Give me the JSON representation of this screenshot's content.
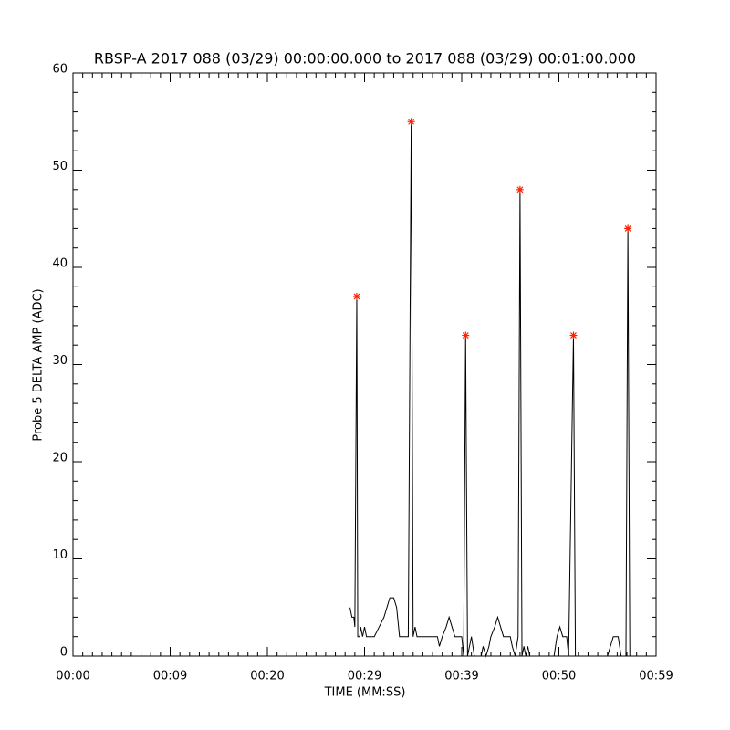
{
  "chart_data": {
    "type": "line",
    "title": "RBSP-A 2017 088 (03/29) 00:00:00.000 to 2017 088 (03/29) 00:01:00.000",
    "xlabel": "TIME (MM:SS)",
    "ylabel": "Probe 5 DELTA AMP (ADC)",
    "xlim": [
      0,
      60
    ],
    "ylim": [
      0,
      60
    ],
    "xticks": [
      {
        "value": 0,
        "label": "00:00"
      },
      {
        "value": 10,
        "label": "00:09"
      },
      {
        "value": 20,
        "label": "00:20"
      },
      {
        "value": 30,
        "label": "00:29"
      },
      {
        "value": 40,
        "label": "00:39"
      },
      {
        "value": 50,
        "label": "00:50"
      },
      {
        "value": 60,
        "label": "00:59"
      }
    ],
    "yticks": [
      0,
      10,
      20,
      30,
      40,
      50,
      60
    ],
    "xminor": 10,
    "yminor": 5,
    "series": [
      {
        "mode": "lines",
        "color": "#000000",
        "x": [
          28.5,
          28.7,
          28.9,
          29.0,
          29.2,
          29.3,
          29.5,
          29.6,
          29.8,
          30.0,
          30.2,
          31.0,
          31.5,
          32.0,
          32.3,
          32.6,
          33.0,
          33.3,
          33.6,
          34.0,
          34.5,
          34.8,
          35.0,
          35.2,
          35.4,
          36.5,
          37.5,
          37.7,
          38.0,
          38.4,
          38.7,
          39.0,
          39.3,
          40.0,
          40.2,
          40.4,
          40.6,
          41.0,
          41.3,
          42.0,
          42.2,
          42.5,
          42.8,
          43.0,
          43.4,
          43.7,
          44.0,
          44.3,
          45.0,
          45.2,
          45.5,
          45.8,
          46.0,
          46.2,
          46.4,
          46.6,
          46.8,
          47.0,
          49.5,
          49.8,
          50.1,
          50.4,
          50.8,
          51.0,
          51.5,
          51.7,
          55.0,
          55.3,
          55.6,
          56.1,
          56.4,
          56.9,
          57.1,
          57.3,
          57.5
        ],
        "values": [
          5,
          4,
          4,
          3,
          37,
          2,
          2,
          3,
          2,
          3,
          2,
          2,
          3,
          4,
          5,
          6,
          6,
          5,
          2,
          2,
          2,
          55,
          2,
          3,
          2,
          2,
          2,
          1,
          2,
          3,
          4,
          3,
          2,
          2,
          0,
          33,
          0,
          2,
          0,
          0,
          1,
          0,
          1,
          2,
          3,
          4,
          3,
          2,
          2,
          1,
          0,
          2,
          48,
          0,
          1,
          0,
          1,
          0,
          0,
          2,
          3,
          2,
          2,
          0,
          33,
          0,
          0,
          1,
          2,
          2,
          0,
          0,
          44,
          0,
          0
        ]
      },
      {
        "mode": "markers",
        "color": "#ff2000",
        "x": [
          29.2,
          34.8,
          40.4,
          46.0,
          51.5,
          57.1
        ],
        "values": [
          37,
          55,
          33,
          48,
          33,
          44
        ]
      }
    ]
  }
}
